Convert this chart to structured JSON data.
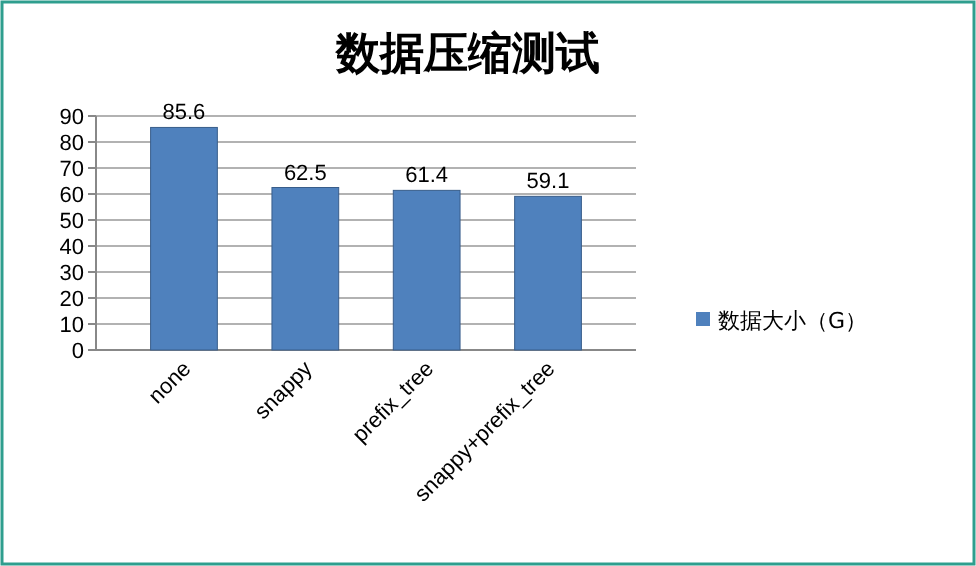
{
  "chart_data": {
    "type": "bar",
    "title": "数据压缩测试",
    "categories": [
      "none",
      "snappy",
      "prefix_tree",
      "snappy+prefix_tree"
    ],
    "series": [
      {
        "name": "数据大小（G）",
        "color": "#4f81bd",
        "values": [
          85.6,
          62.5,
          61.4,
          59.1
        ]
      }
    ],
    "ylim": [
      0,
      90
    ],
    "yticks": [
      0,
      10,
      20,
      30,
      40,
      50,
      60,
      70,
      80,
      90
    ],
    "grid": "y",
    "legend": "right",
    "data_labels": true
  }
}
